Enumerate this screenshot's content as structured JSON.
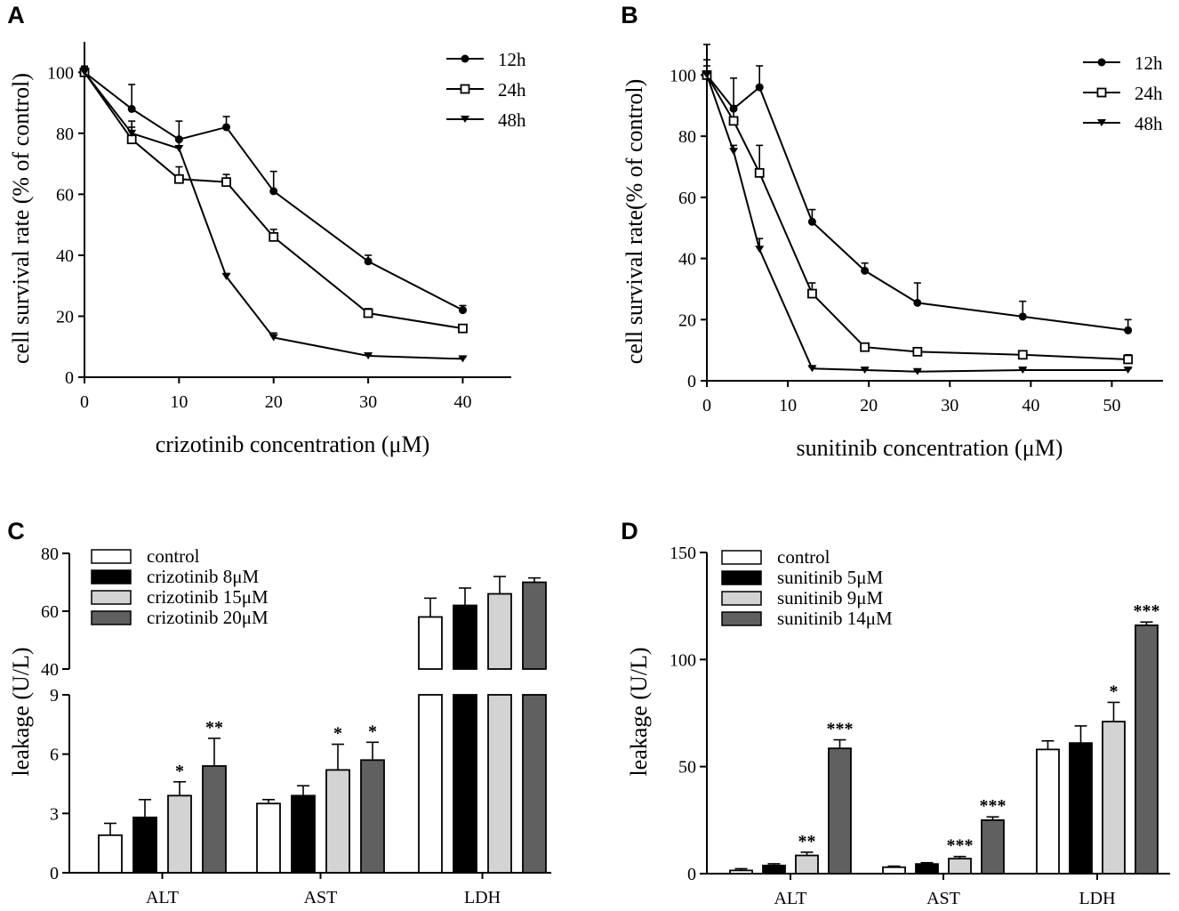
{
  "colors": {
    "axis": "#000000",
    "bar_control": "#ffffff",
    "bar_dose1": "#000000",
    "bar_dose2": "#d3d3d3",
    "bar_dose3": "#606060"
  },
  "chart_data": [
    {
      "panel": "A",
      "type": "line",
      "xlabel": "crizotinib concentration (μM)",
      "ylabel": "cell survival rate (% of control)",
      "xlim": [
        0,
        44
      ],
      "ylim": [
        0,
        110
      ],
      "xticks": [
        0,
        10,
        20,
        30,
        40
      ],
      "yticks": [
        0,
        20,
        40,
        60,
        80,
        100
      ],
      "legend": "top-right",
      "series": [
        {
          "name": "12h",
          "marker": "circle",
          "x": [
            0,
            5,
            10,
            15,
            20,
            30,
            40
          ],
          "y": [
            100,
            88,
            78,
            82,
            61,
            38,
            22
          ],
          "err": [
            2,
            8,
            6,
            3.5,
            6.5,
            2,
            1.5
          ]
        },
        {
          "name": "24h",
          "marker": "square",
          "x": [
            0,
            5,
            10,
            15,
            20,
            30,
            40
          ],
          "y": [
            100,
            78,
            65,
            64,
            46,
            21,
            16
          ],
          "err": [
            1.5,
            4,
            4,
            2.5,
            2.5,
            1.5,
            1
          ]
        },
        {
          "name": "48h",
          "marker": "triangle",
          "x": [
            0,
            5,
            10,
            15,
            20,
            30,
            40
          ],
          "y": [
            100,
            80,
            75,
            33,
            13,
            7,
            6
          ],
          "err": [
            2,
            4,
            3.5,
            1,
            1.5,
            0.5,
            0.5
          ]
        }
      ]
    },
    {
      "panel": "B",
      "type": "line",
      "xlabel": "sunitinib concentration (μM)",
      "ylabel": "cell survival rate(% of control)",
      "xlim": [
        0,
        55
      ],
      "ylim": [
        0,
        110
      ],
      "xticks": [
        0,
        10,
        20,
        30,
        40,
        50
      ],
      "yticks": [
        0,
        20,
        40,
        60,
        80,
        100
      ],
      "legend": "top-right",
      "series": [
        {
          "name": "12h",
          "marker": "circle",
          "x": [
            0,
            3.3,
            6.5,
            13,
            19.5,
            26,
            39,
            52
          ],
          "y": [
            100,
            89,
            96,
            52,
            36,
            25.5,
            21,
            16.5
          ],
          "err": [
            10,
            10,
            7,
            4,
            2.5,
            6.5,
            5,
            3.5
          ]
        },
        {
          "name": "24h",
          "marker": "square",
          "x": [
            0,
            3.3,
            6.5,
            13,
            19.5,
            26,
            39,
            52
          ],
          "y": [
            100,
            85,
            68,
            28.5,
            11,
            9.5,
            8.5,
            7
          ],
          "err": [
            5,
            5,
            9,
            3.5,
            1,
            1,
            1,
            1.5
          ]
        },
        {
          "name": "48h",
          "marker": "triangle",
          "x": [
            0,
            3.3,
            6.5,
            13,
            19.5,
            26,
            39,
            52
          ],
          "y": [
            100,
            75,
            43,
            4,
            3.5,
            3,
            3.5,
            3.5
          ],
          "err": [
            3,
            2,
            3.5,
            0.5,
            0.5,
            0.5,
            0.5,
            0.5
          ]
        }
      ]
    },
    {
      "panel": "C",
      "type": "bar",
      "ylabel": "leakage (U/L)",
      "categories": [
        "ALT",
        "AST",
        "LDH"
      ],
      "axis_break": {
        "lower": [
          0,
          9
        ],
        "upper": [
          40,
          80
        ]
      },
      "yticks_lower": [
        0,
        3,
        6,
        9
      ],
      "yticks_upper": [
        40,
        60,
        80
      ],
      "legend": "top-left",
      "series": [
        {
          "name": "control",
          "values": [
            1.9,
            3.5,
            58
          ],
          "err": [
            0.6,
            0.2,
            6.5
          ],
          "stars": [
            "",
            "",
            ""
          ]
        },
        {
          "name": "crizotinib 8μM",
          "values": [
            2.8,
            3.9,
            62
          ],
          "err": [
            0.9,
            0.5,
            6
          ],
          "stars": [
            "",
            "",
            ""
          ]
        },
        {
          "name": "crizotinib 15μM",
          "values": [
            3.9,
            5.2,
            66
          ],
          "err": [
            0.7,
            1.3,
            6
          ],
          "stars": [
            "*",
            "*",
            ""
          ]
        },
        {
          "name": "crizotinib 20μM",
          "values": [
            5.4,
            5.7,
            70
          ],
          "err": [
            1.4,
            0.9,
            1.5
          ],
          "stars": [
            "**",
            "*",
            ""
          ]
        }
      ]
    },
    {
      "panel": "D",
      "type": "bar",
      "ylabel": "leakage (U/L)",
      "categories": [
        "ALT",
        "AST",
        "LDH"
      ],
      "ylim": [
        0,
        150
      ],
      "yticks": [
        0,
        50,
        100,
        150
      ],
      "legend": "top-left",
      "series": [
        {
          "name": "control",
          "values": [
            1.5,
            3,
            58
          ],
          "err": [
            0.8,
            0.5,
            4
          ],
          "stars": [
            "",
            "",
            ""
          ]
        },
        {
          "name": "sunitinib 5μM",
          "values": [
            3.8,
            4.5,
            61
          ],
          "err": [
            0.8,
            0.6,
            8
          ],
          "stars": [
            "",
            "",
            ""
          ]
        },
        {
          "name": "sunitinib 9μM",
          "values": [
            8.5,
            7,
            71
          ],
          "err": [
            1.5,
            1,
            9
          ],
          "stars": [
            "**",
            "***",
            "*"
          ]
        },
        {
          "name": "sunitinib 14μM",
          "values": [
            58.5,
            25,
            116
          ],
          "err": [
            4,
            1.5,
            1.5
          ],
          "stars": [
            "***",
            "***",
            "***"
          ]
        }
      ]
    }
  ]
}
